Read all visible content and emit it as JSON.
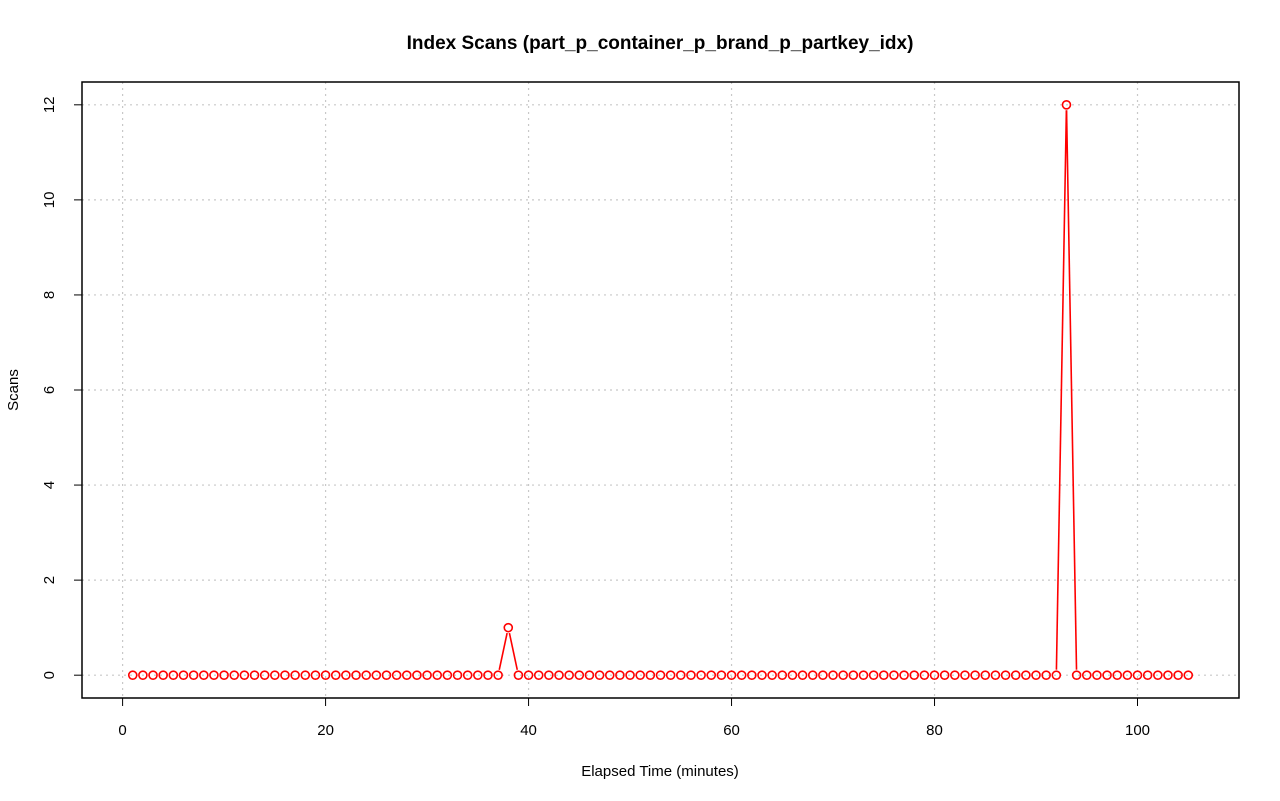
{
  "chart_data": {
    "type": "line",
    "title": "Index Scans (part_p_container_p_brand_p_partkey_idx)",
    "xlabel": "Elapsed Time (minutes)",
    "ylabel": "Scans",
    "xlim": [
      -4.0,
      110.0
    ],
    "ylim": [
      -0.48,
      12.48
    ],
    "x_ticks": [
      0,
      20,
      40,
      60,
      80,
      100
    ],
    "y_ticks": [
      0,
      2,
      4,
      6,
      8,
      10,
      12
    ],
    "x_tick_labels": [
      "0",
      "20",
      "40",
      "60",
      "80",
      "100"
    ],
    "y_tick_labels": [
      "0",
      "2",
      "4",
      "6",
      "8",
      "10",
      "12"
    ],
    "grid": true,
    "line_color": "#ff0000",
    "series": [
      {
        "x_start": 1,
        "x_step": 1,
        "values": [
          0,
          0,
          0,
          0,
          0,
          0,
          0,
          0,
          0,
          0,
          0,
          0,
          0,
          0,
          0,
          0,
          0,
          0,
          0,
          0,
          0,
          0,
          0,
          0,
          0,
          0,
          0,
          0,
          0,
          0,
          0,
          0,
          0,
          0,
          0,
          0,
          0,
          1,
          0,
          0,
          0,
          0,
          0,
          0,
          0,
          0,
          0,
          0,
          0,
          0,
          0,
          0,
          0,
          0,
          0,
          0,
          0,
          0,
          0,
          0,
          0,
          0,
          0,
          0,
          0,
          0,
          0,
          0,
          0,
          0,
          0,
          0,
          0,
          0,
          0,
          0,
          0,
          0,
          0,
          0,
          0,
          0,
          0,
          0,
          0,
          0,
          0,
          0,
          0,
          0,
          0,
          0,
          12,
          0,
          0,
          0,
          0,
          0,
          0,
          0,
          0,
          0,
          0,
          0,
          0
        ]
      }
    ]
  }
}
